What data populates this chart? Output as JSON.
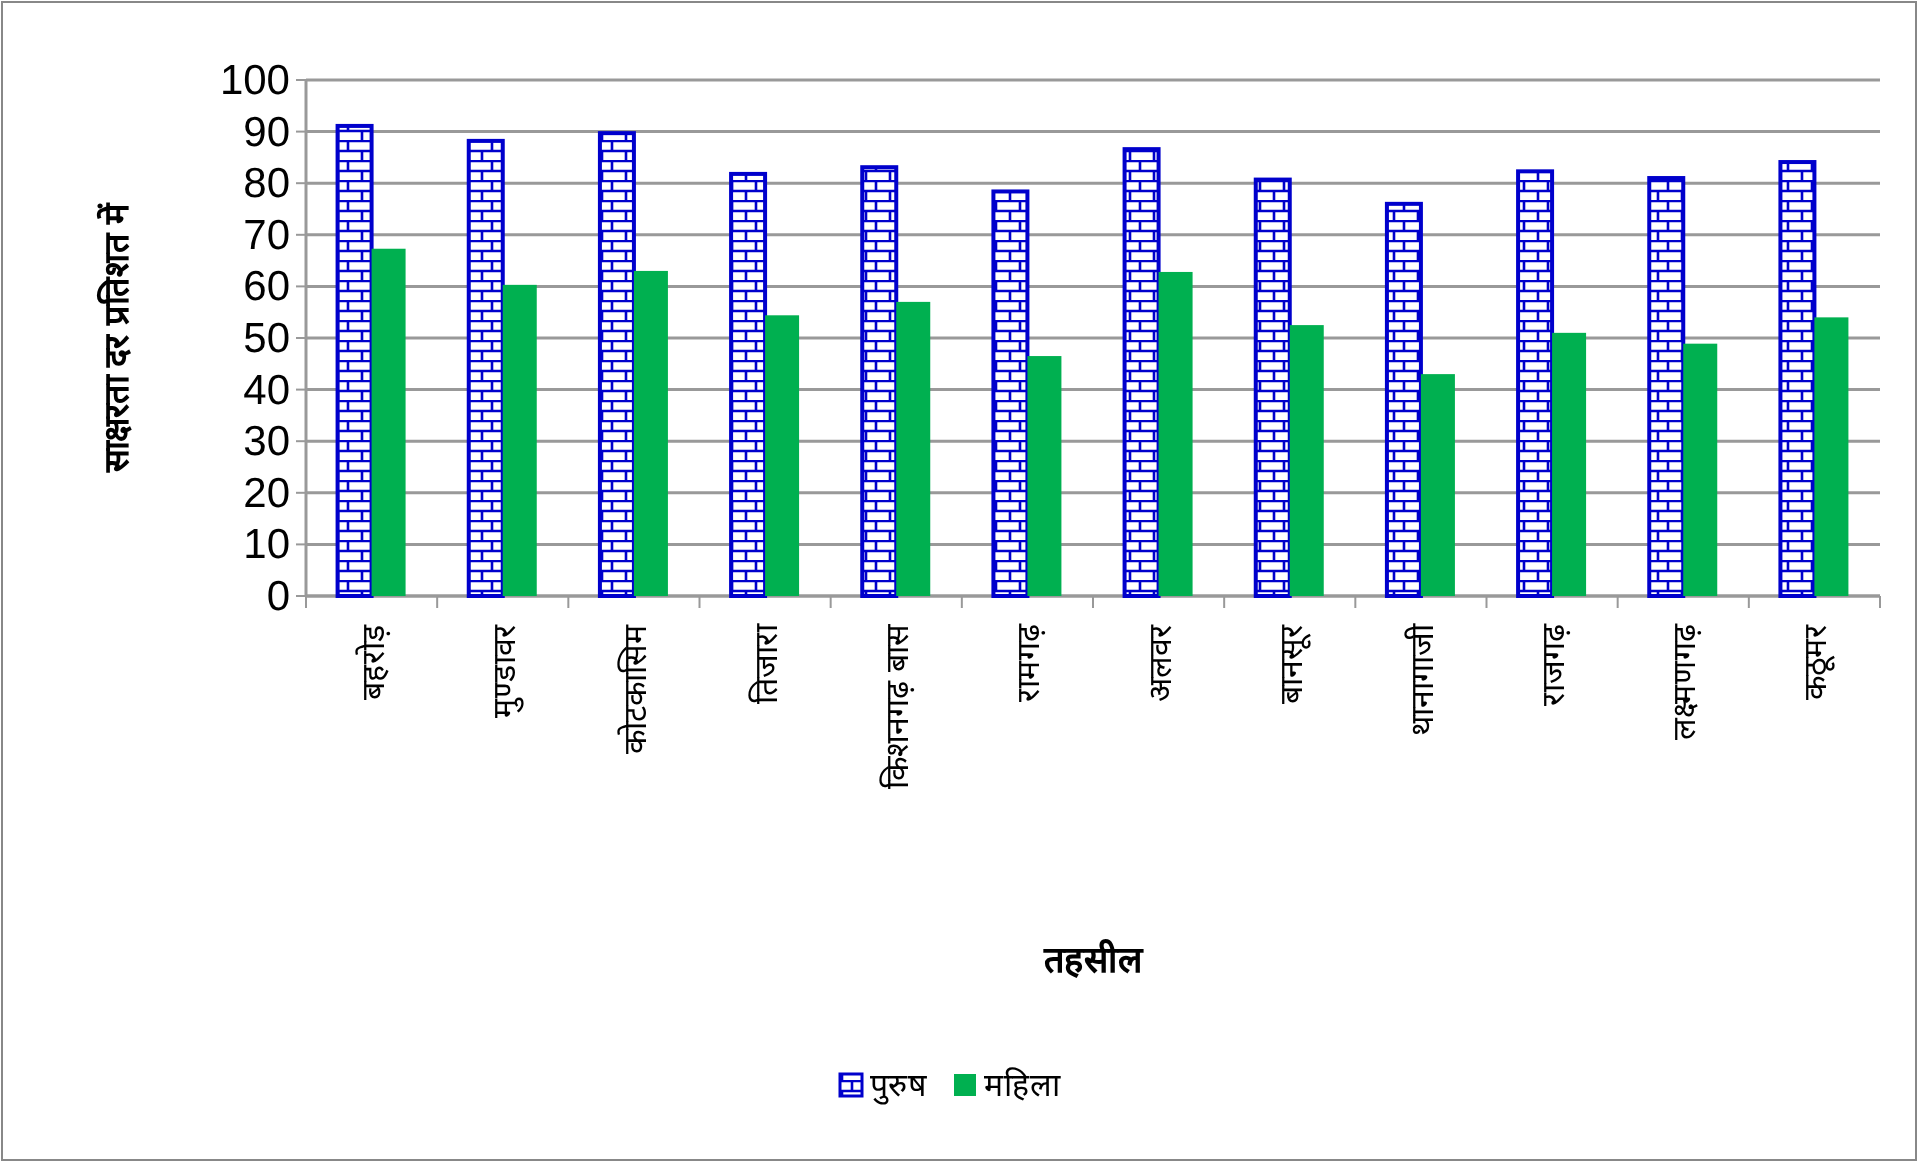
{
  "chart_data": {
    "type": "bar",
    "xlabel": "तहसील",
    "ylabel": "साक्षरता दर प्रतिशत में",
    "categories": [
      "बहरोड़",
      "मुण्डावर",
      "कोटकासिम",
      "तिजारा",
      "किशनगढ़ बास",
      "रामगढ़",
      "अलवर",
      "बानसूर",
      "थानागाजी",
      "राजगढ़",
      "लक्ष्मणगढ़",
      "कठूमर"
    ],
    "series": [
      {
        "name": "पुरुष",
        "color": "#0000cc",
        "values": [
          91.1,
          88.2,
          89.7,
          81.8,
          83.1,
          78.4,
          86.6,
          80.7,
          76.0,
          82.3,
          81.0,
          84.1
        ]
      },
      {
        "name": "महिला",
        "color": "#00b050",
        "values": [
          67.3,
          60.3,
          63.0,
          54.4,
          57.0,
          46.5,
          62.8,
          52.5,
          43.0,
          51.0,
          48.9,
          54.0
        ]
      }
    ],
    "ylim": [
      0,
      100
    ],
    "yticks": [
      0,
      10,
      20,
      30,
      40,
      50,
      60,
      70,
      80,
      90,
      100
    ],
    "grid": "y",
    "legend": "bottom"
  }
}
